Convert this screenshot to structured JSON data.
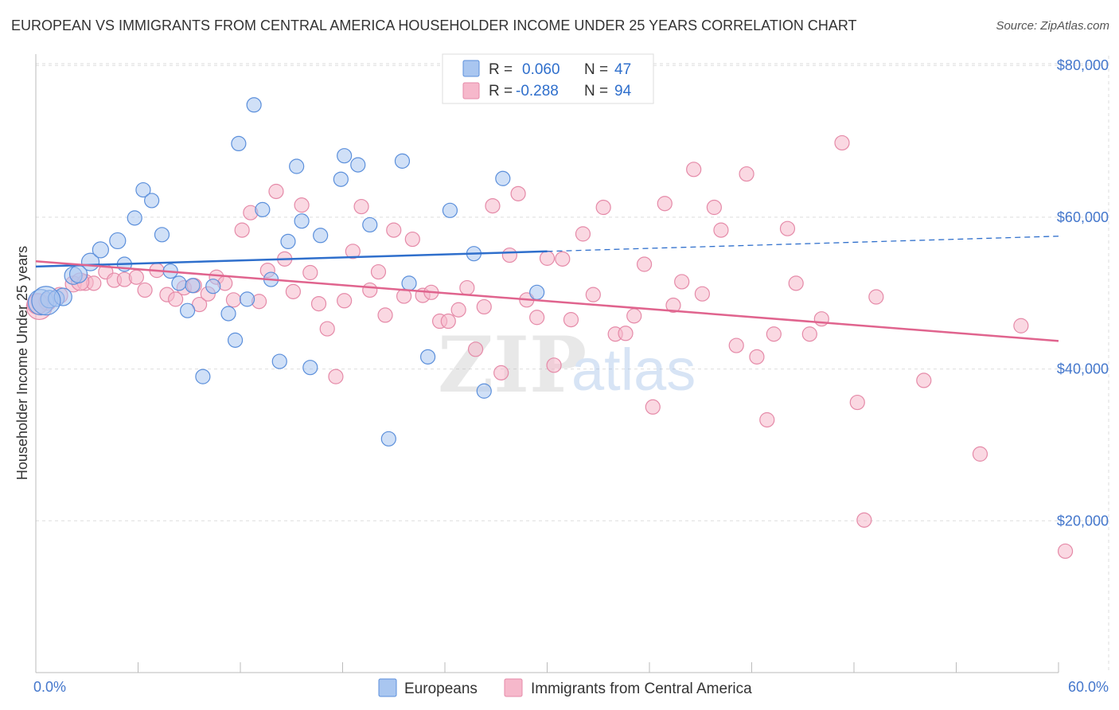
{
  "header": {
    "title": "EUROPEAN VS IMMIGRANTS FROM CENTRAL AMERICA HOUSEHOLDER INCOME UNDER 25 YEARS CORRELATION CHART",
    "source": "Source: ZipAtlas.com"
  },
  "watermark": {
    "zip": "ZIP",
    "atlas": "atlas"
  },
  "stats_legend": {
    "rows": [
      {
        "r_label": "R =",
        "r_value": "0.060",
        "n_label": "N =",
        "n_value": "47"
      },
      {
        "r_label": "R =",
        "r_value": "-0.288",
        "n_label": "N =",
        "n_value": "94"
      }
    ]
  },
  "bottom_legend": {
    "items": [
      "Europeans",
      "Immigrants from Central America"
    ]
  },
  "colors": {
    "european_fill": "#a9c6f0",
    "european_stroke": "#5b8fdb",
    "european_line": "#2f6fcc",
    "immigrant_fill": "#f6b8cb",
    "immigrant_stroke": "#e58aa8",
    "immigrant_line": "#e0648e",
    "tick_label": "#4477cc",
    "grid": "#dddddd"
  },
  "chart_data": {
    "type": "scatter",
    "title": "EUROPEAN VS IMMIGRANTS FROM CENTRAL AMERICA HOUSEHOLDER INCOME UNDER 25 YEARS CORRELATION CHART",
    "xlabel": "",
    "ylabel": "Householder Income Under 25 years",
    "xlim": [
      0,
      60
    ],
    "ylim": [
      0,
      82000
    ],
    "x_tick_labels": [
      "0.0%",
      "60.0%"
    ],
    "y_ticks": [
      20000,
      40000,
      60000,
      80000
    ],
    "y_tick_labels": [
      "$20,000",
      "$40,000",
      "$60,000",
      "$80,000"
    ],
    "grid": true,
    "legend_position": "bottom",
    "series": [
      {
        "name": "Europeans",
        "r": 0.06,
        "n": 47,
        "trend": {
          "x0": 0,
          "y0": 53500,
          "x1": 30,
          "y1": 55500,
          "dashed_to_x": 60,
          "dashed_to_y": 57500
        },
        "points": [
          [
            0.3,
            48800
          ],
          [
            0.8,
            49200
          ],
          [
            1.2,
            49300
          ],
          [
            1.6,
            49500
          ],
          [
            2.2,
            52300
          ],
          [
            3.2,
            54100
          ],
          [
            3.8,
            55700
          ],
          [
            4.8,
            56900
          ],
          [
            5.2,
            53800
          ],
          [
            5.8,
            59900
          ],
          [
            6.3,
            63600
          ],
          [
            6.8,
            62200
          ],
          [
            7.4,
            57700
          ],
          [
            7.9,
            52900
          ],
          [
            8.4,
            51300
          ],
          [
            8.9,
            47700
          ],
          [
            9.2,
            51000
          ],
          [
            9.8,
            39000
          ],
          [
            10.4,
            50900
          ],
          [
            11.3,
            47300
          ],
          [
            11.7,
            43800
          ],
          [
            11.9,
            69700
          ],
          [
            12.4,
            49200
          ],
          [
            12.8,
            74800
          ],
          [
            13.3,
            61000
          ],
          [
            13.8,
            51800
          ],
          [
            14.3,
            41000
          ],
          [
            14.8,
            56800
          ],
          [
            15.3,
            66700
          ],
          [
            15.6,
            59500
          ],
          [
            16.1,
            40200
          ],
          [
            16.7,
            57600
          ],
          [
            17.9,
            65000
          ],
          [
            18.1,
            68100
          ],
          [
            18.9,
            66900
          ],
          [
            19.6,
            59000
          ],
          [
            20.7,
            30800
          ],
          [
            21.5,
            67400
          ],
          [
            21.9,
            51300
          ],
          [
            23.0,
            41600
          ],
          [
            24.3,
            60900
          ],
          [
            25.7,
            55200
          ],
          [
            26.3,
            37100
          ],
          [
            27.4,
            65100
          ],
          [
            29.4,
            50100
          ],
          [
            0.6,
            49000
          ],
          [
            2.5,
            52500
          ]
        ],
        "sizes": [
          16,
          11,
          10,
          11,
          11,
          11,
          10,
          10,
          9,
          9,
          9,
          9,
          9,
          9,
          9,
          9,
          9,
          9,
          9,
          9,
          9,
          9,
          9,
          9,
          9,
          9,
          9,
          9,
          9,
          9,
          9,
          9,
          9,
          9,
          9,
          9,
          9,
          9,
          9,
          9,
          9,
          9,
          9,
          9,
          9,
          18,
          11
        ]
      },
      {
        "name": "Immigrants from Central America",
        "r": -0.288,
        "n": 94,
        "trend": {
          "x0": 0,
          "y0": 54200,
          "x1": 60,
          "y1": 43700
        },
        "points": [
          [
            0.2,
            48200
          ],
          [
            0.7,
            48900
          ],
          [
            1.4,
            49700
          ],
          [
            2.2,
            51200
          ],
          [
            2.9,
            51400
          ],
          [
            3.4,
            51300
          ],
          [
            4.1,
            52800
          ],
          [
            4.6,
            51700
          ],
          [
            5.2,
            51800
          ],
          [
            5.9,
            52100
          ],
          [
            6.4,
            50400
          ],
          [
            7.1,
            53000
          ],
          [
            7.7,
            49800
          ],
          [
            8.2,
            49200
          ],
          [
            8.7,
            50700
          ],
          [
            9.3,
            51000
          ],
          [
            9.6,
            48500
          ],
          [
            10.1,
            49900
          ],
          [
            10.6,
            52100
          ],
          [
            11.1,
            51300
          ],
          [
            11.6,
            49100
          ],
          [
            12.1,
            58300
          ],
          [
            12.6,
            60600
          ],
          [
            13.1,
            48900
          ],
          [
            13.6,
            53000
          ],
          [
            14.1,
            63400
          ],
          [
            14.6,
            54500
          ],
          [
            15.1,
            50200
          ],
          [
            15.6,
            61600
          ],
          [
            16.1,
            52700
          ],
          [
            16.6,
            48600
          ],
          [
            17.1,
            45300
          ],
          [
            17.6,
            39000
          ],
          [
            18.1,
            49000
          ],
          [
            18.6,
            55500
          ],
          [
            19.1,
            61400
          ],
          [
            19.6,
            50400
          ],
          [
            20.1,
            52800
          ],
          [
            20.5,
            47100
          ],
          [
            21.0,
            58300
          ],
          [
            21.6,
            49600
          ],
          [
            22.1,
            57100
          ],
          [
            22.7,
            49700
          ],
          [
            23.2,
            50100
          ],
          [
            23.7,
            46300
          ],
          [
            24.2,
            46300
          ],
          [
            24.8,
            47800
          ],
          [
            25.3,
            50700
          ],
          [
            25.8,
            42600
          ],
          [
            26.3,
            48200
          ],
          [
            26.8,
            61500
          ],
          [
            27.3,
            39500
          ],
          [
            27.8,
            55000
          ],
          [
            28.3,
            63100
          ],
          [
            28.8,
            49100
          ],
          [
            29.4,
            46800
          ],
          [
            30.0,
            54600
          ],
          [
            30.4,
            40500
          ],
          [
            30.9,
            54500
          ],
          [
            31.4,
            46500
          ],
          [
            32.1,
            57800
          ],
          [
            32.7,
            49800
          ],
          [
            33.3,
            61300
          ],
          [
            34.0,
            44600
          ],
          [
            34.6,
            44700
          ],
          [
            35.1,
            47000
          ],
          [
            35.7,
            53800
          ],
          [
            36.2,
            35000
          ],
          [
            36.9,
            61800
          ],
          [
            37.4,
            48400
          ],
          [
            37.9,
            51500
          ],
          [
            38.6,
            66300
          ],
          [
            39.1,
            49900
          ],
          [
            39.8,
            61300
          ],
          [
            40.2,
            58300
          ],
          [
            41.1,
            43100
          ],
          [
            41.7,
            65700
          ],
          [
            42.3,
            41600
          ],
          [
            42.9,
            33300
          ],
          [
            43.3,
            44600
          ],
          [
            44.1,
            58500
          ],
          [
            44.6,
            51300
          ],
          [
            45.4,
            44600
          ],
          [
            46.1,
            46600
          ],
          [
            47.3,
            69800
          ],
          [
            48.2,
            35600
          ],
          [
            48.6,
            20100
          ],
          [
            49.3,
            49500
          ],
          [
            52.1,
            38500
          ],
          [
            55.4,
            28800
          ],
          [
            57.8,
            45700
          ],
          [
            60.4,
            16000
          ],
          [
            0.1,
            48600
          ],
          [
            2.6,
            51500
          ]
        ],
        "sizes": [
          16,
          11,
          10,
          10,
          10,
          9,
          9,
          9,
          9,
          9,
          9,
          9,
          9,
          9,
          9,
          9,
          9,
          9,
          9,
          9,
          9,
          9,
          9,
          9,
          9,
          9,
          9,
          9,
          9,
          9,
          9,
          9,
          9,
          9,
          9,
          9,
          9,
          9,
          9,
          9,
          9,
          9,
          9,
          9,
          9,
          9,
          9,
          9,
          9,
          9,
          9,
          9,
          9,
          9,
          9,
          9,
          9,
          9,
          9,
          9,
          9,
          9,
          9,
          9,
          9,
          9,
          9,
          9,
          9,
          9,
          9,
          9,
          9,
          9,
          9,
          9,
          9,
          9,
          9,
          9,
          9,
          9,
          9,
          9,
          9,
          9,
          9,
          9,
          9,
          9,
          9,
          9,
          13,
          11
        ]
      }
    ]
  }
}
